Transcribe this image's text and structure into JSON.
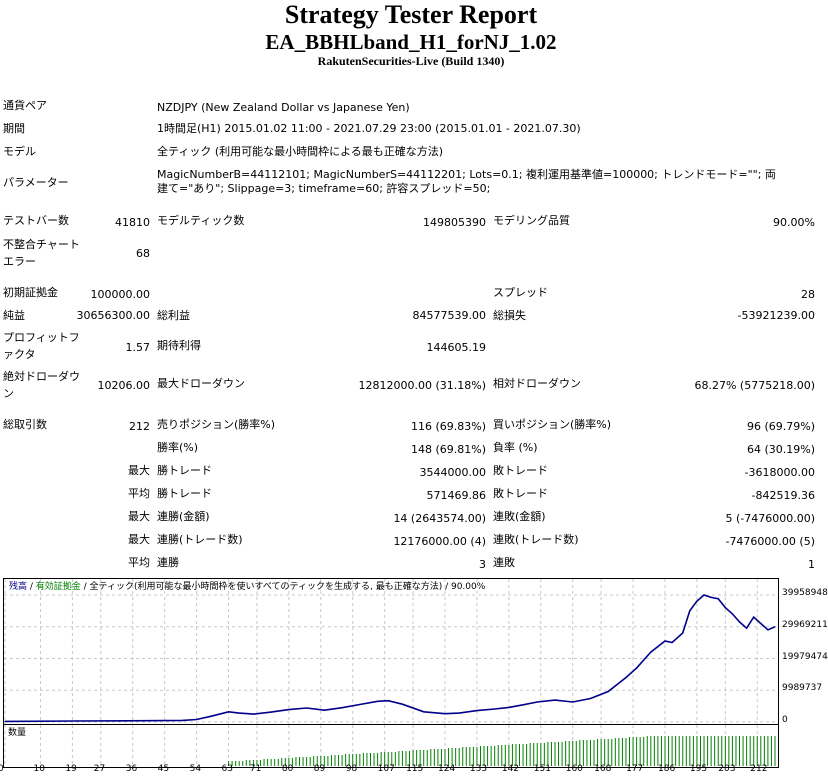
{
  "header": {
    "title": "Strategy Tester Report",
    "expert": "EA_BBHLband_H1_forNJ_1.02",
    "server": "RakutenSecurities-Live (Build 1340)"
  },
  "info": [
    {
      "label": "通貨ペア",
      "value": "NZDJPY (New Zealand Dollar vs Japanese Yen)"
    },
    {
      "label": "期間",
      "value": "1時間足(H1) 2015.01.02 11:00 - 2021.07.29 23:00 (2015.01.01 - 2021.07.30)"
    },
    {
      "label": "モデル",
      "value": "全ティック (利用可能な最小時間枠による最も正確な方法)"
    },
    {
      "label": "パラメーター",
      "value": "MagicNumberB=44112101; MagicNumberS=44112201; Lots=0.1; 複利運用基準値=100000; トレンドモード=\"\"; 両建て=\"あり\"; Slippage=3; timeframe=60; 許容スプレッド=50;"
    }
  ],
  "stats": {
    "bars_label": "テストバー数",
    "bars": "41810",
    "ticks_label": "モデルティック数",
    "ticks": "149805390",
    "quality_label": "モデリング品質",
    "quality": "90.00%",
    "mismatch_label": "不整合チャートエラー",
    "mismatch": "68",
    "deposit_label": "初期証拠金",
    "deposit": "100000.00",
    "spread_label": "スプレッド",
    "spread": "28",
    "net_label": "純益",
    "net": "30656300.00",
    "gross_profit_label": "総利益",
    "gross_profit": "84577539.00",
    "gross_loss_label": "総損失",
    "gross_loss": "-53921239.00",
    "pf_label": "プロフィットファクタ",
    "pf": "1.57",
    "expected_label": "期待利得",
    "expected": "144605.19",
    "abs_dd_label": "絶対ドローダウン",
    "abs_dd": "10206.00",
    "max_dd_label": "最大ドローダウン",
    "max_dd": "12812000.00 (31.18%)",
    "rel_dd_label": "相対ドローダウン",
    "rel_dd": "68.27% (5775218.00)",
    "trades_label": "総取引数",
    "trades": "212",
    "short_label": "売りポジション(勝率%)",
    "short": "116 (69.83%)",
    "long_label": "買いポジション(勝率%)",
    "long": "96 (69.79%)",
    "win_rate_label": "勝率(%)",
    "win_rate": "148 (69.81%)",
    "loss_rate_label": "負率 (%)",
    "loss_rate": "64 (30.19%)",
    "max_word": "最大",
    "avg_word": "平均",
    "win_trade_label": "勝トレード",
    "loss_trade_label": "敗トレード",
    "largest_win": "3544000.00",
    "largest_loss": "-3618000.00",
    "avg_win": "571469.86",
    "avg_loss": "-842519.36",
    "cons_win_money_label": "連勝(金額)",
    "cons_win_money": "14 (2643574.00)",
    "cons_loss_money_label": "連敗(金額)",
    "cons_loss_money": "5 (-7476000.00)",
    "cons_win_count_label": "連勝(トレード数)",
    "cons_win_count": "12176000.00 (4)",
    "cons_loss_count_label": "連敗(トレード数)",
    "cons_loss_count": "-7476000.00 (5)",
    "avg_cons_win_label": "連勝",
    "avg_cons_win": "3",
    "avg_cons_loss_label": "連敗",
    "avg_cons_loss": "1"
  },
  "chart": {
    "legend_balance": "残高",
    "legend_sep": " / ",
    "legend_equity": "有効証拠金",
    "legend_rest": " / 全ティック(利用可能な最小時間枠を使いすべてのティックを生成する, 最も正確な方法) / 90.00%",
    "volume_label": "数量",
    "colors": {
      "balance": "#00008b",
      "equity": "#008000",
      "volume": "#008000",
      "grid": "#c8c8c8"
    }
  },
  "chart_data": {
    "type": "line",
    "ylim": [
      0,
      39958948
    ],
    "y_ticks": [
      "39958948",
      "29969211",
      "19979474",
      "9989737",
      "0"
    ],
    "x_ticks": [
      "0",
      "10",
      "19",
      "27",
      "36",
      "45",
      "54",
      "63",
      "71",
      "80",
      "89",
      "98",
      "107",
      "115",
      "124",
      "133",
      "142",
      "151",
      "160",
      "168",
      "177",
      "186",
      "195",
      "203",
      "212"
    ],
    "xlim": [
      0,
      217
    ],
    "series": [
      {
        "x": [
          0,
          20,
          40,
          50,
          54,
          58,
          63,
          66,
          70,
          75,
          80,
          85,
          90,
          95,
          100,
          105,
          108,
          112,
          118,
          124,
          128,
          133,
          138,
          142,
          146,
          150,
          155,
          160,
          165,
          170,
          175,
          178,
          182,
          186,
          188,
          191,
          193,
          195,
          197,
          199,
          201,
          203,
          205,
          207,
          209,
          211,
          213,
          215,
          217
        ],
        "y": [
          200000,
          300000,
          400000,
          500000,
          800000,
          1800000,
          3200000,
          2800000,
          2500000,
          3100000,
          3900000,
          4400000,
          3700000,
          4500000,
          5500000,
          6500000,
          6700000,
          5600000,
          3200000,
          2600000,
          2800000,
          3600000,
          4100000,
          4600000,
          5400000,
          6300000,
          6900000,
          6300000,
          7400000,
          9600000,
          14000000,
          17000000,
          22000000,
          25500000,
          25000000,
          28000000,
          35000000,
          38000000,
          39958948,
          39200000,
          38800000,
          36000000,
          34000000,
          31500000,
          29500000,
          33000000,
          31000000,
          29000000,
          29969211
        ]
      }
    ],
    "volume_start_x": 63,
    "volume_full_x": 183,
    "volume_max": 0.1
  }
}
